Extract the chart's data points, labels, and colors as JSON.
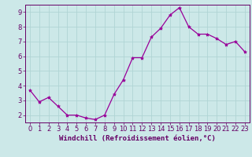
{
  "x": [
    0,
    1,
    2,
    3,
    4,
    5,
    6,
    7,
    8,
    9,
    10,
    11,
    12,
    13,
    14,
    15,
    16,
    17,
    18,
    19,
    20,
    21,
    22,
    23
  ],
  "y": [
    3.7,
    2.9,
    3.2,
    2.6,
    2.0,
    2.0,
    1.8,
    1.7,
    2.0,
    3.4,
    4.4,
    5.9,
    5.9,
    7.3,
    7.9,
    8.8,
    9.3,
    8.0,
    7.5,
    7.5,
    7.2,
    6.8,
    7.0,
    6.3
  ],
  "line_color": "#990099",
  "marker": "*",
  "marker_color": "#990099",
  "bg_color": "#cce8e8",
  "grid_color": "#b0d4d4",
  "axis_color": "#660066",
  "xlabel": "Windchill (Refroidissement éolien,°C)",
  "ylim": [
    1.5,
    9.5
  ],
  "xlim": [
    -0.5,
    23.5
  ],
  "yticks": [
    2,
    3,
    4,
    5,
    6,
    7,
    8,
    9
  ],
  "xticks": [
    0,
    1,
    2,
    3,
    4,
    5,
    6,
    7,
    8,
    9,
    10,
    11,
    12,
    13,
    14,
    15,
    16,
    17,
    18,
    19,
    20,
    21,
    22,
    23
  ],
  "font_color": "#660066",
  "label_fontsize": 6.5,
  "tick_fontsize": 6.0
}
